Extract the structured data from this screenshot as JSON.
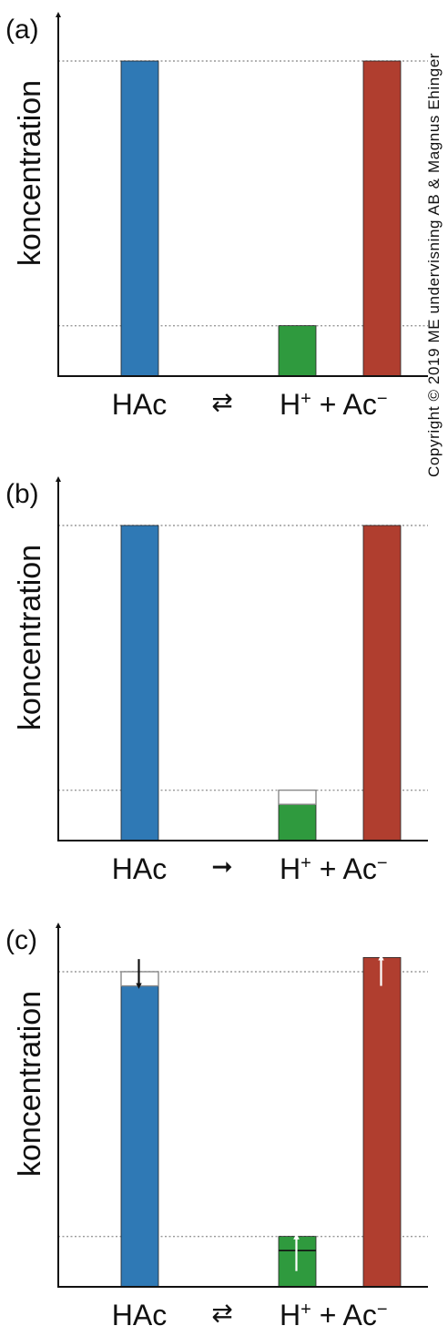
{
  "copyright": "Copyright © 2019 ME undervisning AB & Magnus Ehinger",
  "colors": {
    "hac": "#2f79b5",
    "hplus": "#2f9a3e",
    "ac": "#b03e2f",
    "axis": "#111111",
    "reference_line": "#999999",
    "marker_down": "#111111",
    "marker_up": "#ffffff"
  },
  "chart_data": [
    {
      "type": "bar",
      "panel_label": "(a)",
      "ylabel": "koncentration",
      "categories": [
        "HAc",
        "H⁺",
        "Ac⁻"
      ],
      "equation": {
        "reactant": "HAc",
        "symbol": "⇄",
        "product_1": "H",
        "charge_1": "+",
        "plus": "+",
        "product_2": "Ac",
        "charge_2": "−"
      },
      "ylim": [
        0,
        100
      ],
      "reference_lines": [
        100,
        16
      ],
      "values": [
        100,
        16,
        100
      ],
      "outline_tops": [
        null,
        null,
        null
      ],
      "change_markers": []
    },
    {
      "type": "bar",
      "panel_label": "(b)",
      "ylabel": "koncentration",
      "categories": [
        "HAc",
        "H⁺",
        "Ac⁻"
      ],
      "equation": {
        "reactant": "HAc",
        "symbol": "➞",
        "product_1": "H",
        "charge_1": "+",
        "plus": "+",
        "product_2": "Ac",
        "charge_2": "−"
      },
      "ylim": [
        0,
        100
      ],
      "reference_lines": [
        100,
        16
      ],
      "values": [
        100,
        11.5,
        100
      ],
      "outline_tops": [
        null,
        16,
        null
      ],
      "change_markers": []
    },
    {
      "type": "bar",
      "panel_label": "(c)",
      "ylabel": "koncentration",
      "categories": [
        "HAc",
        "H⁺",
        "Ac⁻"
      ],
      "equation": {
        "reactant": "HAc",
        "symbol": "⇄",
        "product_1": "H",
        "charge_1": "+",
        "plus": "+",
        "product_2": "Ac",
        "charge_2": "−"
      },
      "ylim": [
        0,
        100
      ],
      "reference_lines": [
        100,
        16
      ],
      "values": [
        95.5,
        16,
        104.5
      ],
      "outline_tops": [
        100,
        null,
        null
      ],
      "inner_lines": [
        null,
        11.5,
        null
      ],
      "change_markers": [
        {
          "bar": 0,
          "direction": "down",
          "from": 104,
          "to": 95.5,
          "color": "marker_down"
        },
        {
          "bar": 1,
          "direction": "up",
          "from": 5,
          "to": 16,
          "color": "marker_up"
        },
        {
          "bar": 2,
          "direction": "up",
          "from": 95.5,
          "to": 104.5,
          "color": "marker_up"
        }
      ]
    }
  ]
}
